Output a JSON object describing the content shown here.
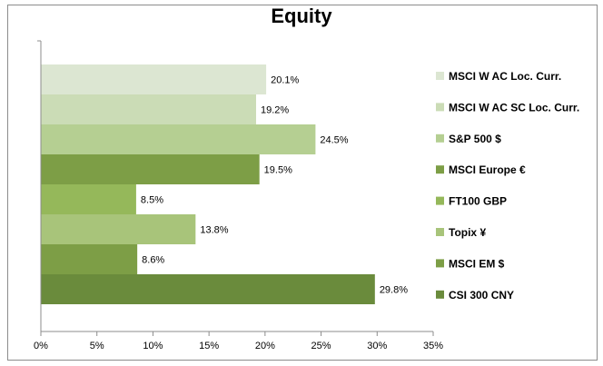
{
  "chart_data": {
    "type": "bar",
    "orientation": "horizontal",
    "title": "Equity",
    "categories": [
      "MSCI W AC Loc. Curr.",
      "MSCI W AC SC Loc. Curr.",
      "S&P 500 $",
      "MSCI Europe €",
      "FT100 GBP",
      "Topix ¥",
      "MSCI EM $",
      "CSI 300 CNY"
    ],
    "values": [
      20.1,
      19.2,
      24.5,
      19.5,
      8.5,
      13.8,
      8.6,
      29.8
    ],
    "data_labels": [
      "20.1%",
      "19.2%",
      "24.5%",
      "19.5%",
      "8.5%",
      "13.8%",
      "8.6%",
      "29.8%"
    ],
    "colors": [
      "#dce6d2",
      "#cbdcb6",
      "#b5cf92",
      "#7d9e46",
      "#95b85a",
      "#a8c47a",
      "#7d9e46",
      "#6a8b3c"
    ],
    "xlim": [
      0,
      35
    ],
    "x_ticks": [
      "0%",
      "5%",
      "10%",
      "15%",
      "20%",
      "25%",
      "30%",
      "35%"
    ],
    "xlabel": "",
    "ylabel": "",
    "grid": false,
    "legend_placement": "right"
  }
}
